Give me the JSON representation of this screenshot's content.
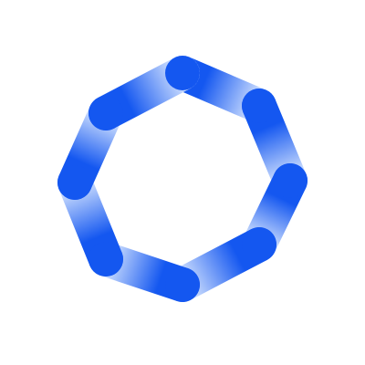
{
  "logo": {
    "icon": "loading-spinner-icon",
    "segment_count": 8,
    "colors": {
      "solid": "#1457f0",
      "fade": "#dce9ff",
      "background": "#ffffff"
    }
  }
}
